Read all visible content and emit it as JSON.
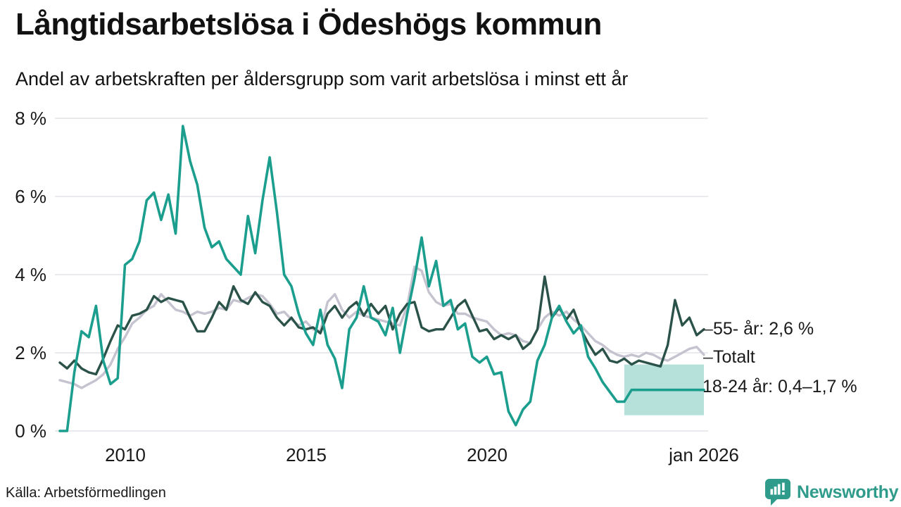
{
  "header": {
    "title": "Långtidsarbetslösa i Ödeshögs kommun",
    "subtitle": "Andel av arbetskraften per åldersgrupp som varit arbetslösa i minst ett år"
  },
  "footer": {
    "source": "Källa: Arbetsförmedlingen",
    "brand": "Newsworthy",
    "logo_icon": "speech-bubble-bar-chart",
    "brand_color": "#2e9b8b"
  },
  "end_labels": [
    {
      "dash": "–",
      "label": "55- år: 2,6 %"
    },
    {
      "dash": "–",
      "label": "Totalt"
    },
    {
      "dash": "",
      "label": "18-24 år: 0,4–1,7 %"
    }
  ],
  "chart_data": {
    "type": "line",
    "title": "Långtidsarbetslösa i Ödeshögs kommun",
    "subtitle": "Andel av arbetskraften per åldersgrupp som varit arbetslösa i minst ett år",
    "grid": true,
    "grid_color": "#e4e4e8",
    "legend_position": "right-end-labels",
    "x_start": 2008.2,
    "x_step": 0.2,
    "x_axis": {
      "range": [
        2008.2,
        2026.0
      ],
      "ticks": [
        {
          "value": 2010,
          "label": "2010"
        },
        {
          "value": 2015,
          "label": "2015"
        },
        {
          "value": 2020,
          "label": "2020"
        },
        {
          "value": 2026.0,
          "label": "jan 2026"
        }
      ]
    },
    "y_axis": {
      "unit": "%",
      "range": [
        0,
        8
      ],
      "ticks": [
        {
          "value": 0,
          "label": "0 %"
        },
        {
          "value": 2,
          "label": "2 %"
        },
        {
          "value": 4,
          "label": "4 %"
        },
        {
          "value": 6,
          "label": "6 %"
        },
        {
          "value": 8,
          "label": "8 %"
        }
      ]
    },
    "series": [
      {
        "name": "Totalt",
        "color": "#c5c3cf",
        "stroke_width": 3.4,
        "values": [
          1.3,
          1.25,
          1.2,
          1.1,
          1.2,
          1.3,
          1.45,
          1.7,
          2.1,
          2.4,
          2.75,
          2.9,
          3.1,
          3.2,
          3.5,
          3.3,
          3.1,
          3.05,
          2.95,
          3.05,
          3.0,
          3.05,
          3.15,
          3.1,
          3.35,
          3.3,
          3.4,
          3.5,
          3.45,
          3.25,
          3.0,
          3.05,
          2.85,
          2.7,
          2.8,
          2.6,
          2.55,
          3.3,
          3.5,
          3.1,
          2.9,
          3.05,
          2.95,
          2.9,
          2.85,
          2.8,
          2.75,
          2.7,
          3.2,
          4.2,
          4.1,
          3.55,
          3.3,
          3.2,
          3.25,
          3.0,
          3.0,
          2.9,
          2.85,
          2.8,
          2.6,
          2.45,
          2.5,
          2.45,
          2.3,
          2.25,
          2.6,
          2.9,
          3.05,
          2.95,
          3.05,
          2.85,
          2.7,
          2.5,
          2.3,
          2.2,
          2.05,
          1.95,
          1.9,
          1.95,
          1.9,
          2.0,
          1.95,
          1.85,
          1.8,
          1.9,
          2.0,
          2.1,
          2.15,
          1.95
        ]
      },
      {
        "name": "55- år",
        "color": "#2b5249",
        "stroke_width": 3.4,
        "end_value": 2.6,
        "end_label": "55- år: 2,6 %",
        "values": [
          1.75,
          1.6,
          1.8,
          1.6,
          1.5,
          1.45,
          1.85,
          2.3,
          2.7,
          2.6,
          2.95,
          3.0,
          3.1,
          3.45,
          3.3,
          3.4,
          3.35,
          3.3,
          2.9,
          2.55,
          2.55,
          2.9,
          3.3,
          3.1,
          3.7,
          3.35,
          3.25,
          3.55,
          3.3,
          3.2,
          2.9,
          2.7,
          2.9,
          2.65,
          2.6,
          2.65,
          2.5,
          3.0,
          3.2,
          2.9,
          3.15,
          3.3,
          2.95,
          3.25,
          3.0,
          3.2,
          2.6,
          3.0,
          3.25,
          3.3,
          2.65,
          2.55,
          2.6,
          2.6,
          2.9,
          3.2,
          3.35,
          2.95,
          2.55,
          2.6,
          2.35,
          2.45,
          2.35,
          2.45,
          2.1,
          2.25,
          2.6,
          3.95,
          2.9,
          3.15,
          2.85,
          3.1,
          2.6,
          2.25,
          1.95,
          2.1,
          1.8,
          1.75,
          1.85,
          1.7,
          1.8,
          1.75,
          1.7,
          1.65,
          2.2,
          3.35,
          2.7,
          2.9,
          2.45,
          2.6
        ]
      },
      {
        "name": "18-24 år",
        "color": "#1b9e8d",
        "stroke_width": 3.6,
        "end_label": "18-24 år: 0,4–1,7 %",
        "band_fill": "#1b9e8d",
        "band_opacity": 0.32,
        "uncertainty_band": {
          "x_start": 2023.8,
          "x_end": 2026.0,
          "low": 0.4,
          "high": 1.7
        },
        "values": [
          0.0,
          0.0,
          1.5,
          2.55,
          2.4,
          3.2,
          1.8,
          1.2,
          1.35,
          4.25,
          4.4,
          4.85,
          5.9,
          6.1,
          5.4,
          6.05,
          5.05,
          7.8,
          6.9,
          6.3,
          5.2,
          4.7,
          4.85,
          4.4,
          4.2,
          4.0,
          5.5,
          4.55,
          5.9,
          7.0,
          5.6,
          4.0,
          3.7,
          3.0,
          2.5,
          2.2,
          3.1,
          2.2,
          1.85,
          1.1,
          2.6,
          2.9,
          3.7,
          2.9,
          2.8,
          2.45,
          3.15,
          2.0,
          3.0,
          3.9,
          4.95,
          3.7,
          4.35,
          3.2,
          3.35,
          2.6,
          2.75,
          1.9,
          1.75,
          1.9,
          1.45,
          1.5,
          0.5,
          0.15,
          0.55,
          0.75,
          1.8,
          2.2,
          2.9,
          3.2,
          2.8,
          2.5,
          2.7,
          1.9,
          1.6,
          1.25,
          1.0,
          0.75,
          0.75,
          1.05,
          1.05,
          1.05,
          1.05,
          1.05,
          1.05,
          1.05,
          1.05,
          1.05,
          1.05,
          1.05
        ]
      }
    ]
  }
}
